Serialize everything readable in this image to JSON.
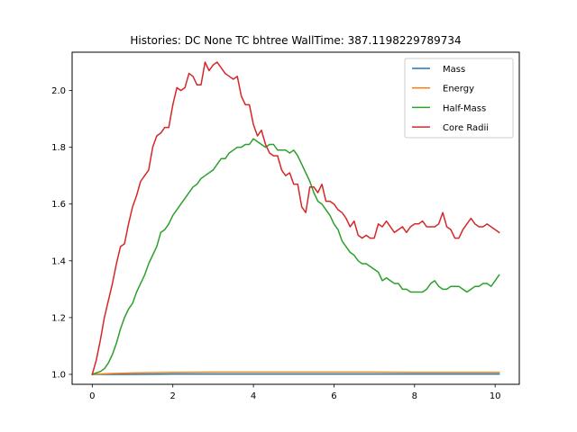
{
  "chart_data": {
    "type": "line",
    "title": "Histories: DC None TC bhtree WallTime: 387.1198229789734",
    "xlabel": "",
    "ylabel": "",
    "xlim": [
      -0.5,
      10.6
    ],
    "ylim": [
      0.965,
      2.135
    ],
    "xticks": [
      0,
      2,
      4,
      6,
      8,
      10
    ],
    "yticks": [
      1.0,
      1.2,
      1.4,
      1.6,
      1.8,
      2.0
    ],
    "xtick_labels": [
      "0",
      "2",
      "4",
      "6",
      "8",
      "10"
    ],
    "ytick_labels": [
      "1.0",
      "1.2",
      "1.4",
      "1.6",
      "1.8",
      "2.0"
    ],
    "grid": false,
    "legend_position": "top-right",
    "series": [
      {
        "name": "Mass",
        "color": "#1f77b4",
        "x": [
          0,
          0.5,
          1,
          2,
          3,
          4,
          5,
          6,
          7,
          8,
          9,
          10,
          10.1
        ],
        "y": [
          1.0,
          1.0,
          1.0,
          1.001,
          1.001,
          1.001,
          1.001,
          1.001,
          1.001,
          1.001,
          1.001,
          1.001,
          1.001
        ]
      },
      {
        "name": "Energy",
        "color": "#ff7f0e",
        "x": [
          0,
          0.5,
          1,
          2,
          3,
          4,
          5,
          6,
          7,
          8,
          9,
          10,
          10.1
        ],
        "y": [
          1.0,
          1.003,
          1.005,
          1.007,
          1.008,
          1.008,
          1.008,
          1.008,
          1.008,
          1.007,
          1.007,
          1.007,
          1.007
        ]
      },
      {
        "name": "Half-Mass",
        "color": "#2ca02c",
        "x": [
          0,
          0.1,
          0.2,
          0.3,
          0.4,
          0.5,
          0.6,
          0.7,
          0.8,
          0.9,
          1.0,
          1.1,
          1.2,
          1.3,
          1.4,
          1.5,
          1.6,
          1.7,
          1.8,
          1.9,
          2.0,
          2.1,
          2.2,
          2.3,
          2.4,
          2.5,
          2.6,
          2.7,
          2.8,
          2.9,
          3.0,
          3.1,
          3.2,
          3.3,
          3.4,
          3.5,
          3.6,
          3.7,
          3.8,
          3.9,
          4.0,
          4.1,
          4.2,
          4.3,
          4.4,
          4.5,
          4.6,
          4.7,
          4.8,
          4.9,
          5.0,
          5.1,
          5.2,
          5.3,
          5.4,
          5.5,
          5.6,
          5.7,
          5.8,
          5.9,
          6.0,
          6.1,
          6.2,
          6.3,
          6.4,
          6.5,
          6.6,
          6.7,
          6.8,
          6.9,
          7.0,
          7.1,
          7.2,
          7.3,
          7.4,
          7.5,
          7.6,
          7.7,
          7.8,
          7.9,
          8.0,
          8.1,
          8.2,
          8.3,
          8.4,
          8.5,
          8.6,
          8.7,
          8.8,
          8.9,
          9.0,
          9.1,
          9.2,
          9.3,
          9.4,
          9.5,
          9.6,
          9.7,
          9.8,
          9.9,
          10.0,
          10.1
        ],
        "y": [
          1.0,
          1.005,
          1.01,
          1.02,
          1.04,
          1.07,
          1.11,
          1.16,
          1.2,
          1.23,
          1.25,
          1.29,
          1.32,
          1.35,
          1.39,
          1.42,
          1.45,
          1.5,
          1.51,
          1.53,
          1.56,
          1.58,
          1.6,
          1.62,
          1.64,
          1.66,
          1.67,
          1.69,
          1.7,
          1.71,
          1.72,
          1.74,
          1.76,
          1.76,
          1.78,
          1.79,
          1.8,
          1.8,
          1.81,
          1.81,
          1.83,
          1.82,
          1.81,
          1.8,
          1.81,
          1.81,
          1.79,
          1.79,
          1.79,
          1.78,
          1.79,
          1.77,
          1.74,
          1.71,
          1.68,
          1.64,
          1.61,
          1.6,
          1.58,
          1.56,
          1.53,
          1.51,
          1.47,
          1.45,
          1.43,
          1.42,
          1.4,
          1.39,
          1.39,
          1.38,
          1.37,
          1.36,
          1.33,
          1.34,
          1.33,
          1.32,
          1.32,
          1.3,
          1.3,
          1.29,
          1.29,
          1.29,
          1.29,
          1.3,
          1.32,
          1.33,
          1.31,
          1.3,
          1.3,
          1.31,
          1.31,
          1.31,
          1.3,
          1.29,
          1.3,
          1.31,
          1.31,
          1.32,
          1.32,
          1.31,
          1.33,
          1.35
        ]
      },
      {
        "name": "Core Radii",
        "color": "#d62728",
        "x": [
          0,
          0.1,
          0.2,
          0.3,
          0.4,
          0.5,
          0.6,
          0.7,
          0.8,
          0.9,
          1.0,
          1.1,
          1.2,
          1.3,
          1.4,
          1.5,
          1.6,
          1.7,
          1.8,
          1.9,
          2.0,
          2.1,
          2.2,
          2.3,
          2.4,
          2.5,
          2.6,
          2.7,
          2.8,
          2.9,
          3.0,
          3.1,
          3.2,
          3.3,
          3.4,
          3.5,
          3.6,
          3.7,
          3.8,
          3.9,
          4.0,
          4.1,
          4.2,
          4.3,
          4.4,
          4.5,
          4.6,
          4.7,
          4.8,
          4.9,
          5.0,
          5.1,
          5.2,
          5.3,
          5.4,
          5.5,
          5.6,
          5.7,
          5.8,
          5.9,
          6.0,
          6.1,
          6.2,
          6.3,
          6.4,
          6.5,
          6.6,
          6.7,
          6.8,
          6.9,
          7.0,
          7.1,
          7.2,
          7.3,
          7.4,
          7.5,
          7.6,
          7.7,
          7.8,
          7.9,
          8.0,
          8.1,
          8.2,
          8.3,
          8.4,
          8.5,
          8.6,
          8.7,
          8.8,
          8.9,
          9.0,
          9.1,
          9.2,
          9.3,
          9.4,
          9.5,
          9.6,
          9.7,
          9.8,
          9.9,
          10.0,
          10.1
        ],
        "y": [
          1.0,
          1.05,
          1.12,
          1.2,
          1.26,
          1.32,
          1.39,
          1.45,
          1.46,
          1.53,
          1.59,
          1.63,
          1.68,
          1.7,
          1.72,
          1.8,
          1.84,
          1.85,
          1.87,
          1.87,
          1.95,
          2.01,
          2.0,
          2.01,
          2.06,
          2.05,
          2.02,
          2.02,
          2.1,
          2.07,
          2.09,
          2.1,
          2.08,
          2.06,
          2.05,
          2.04,
          2.05,
          1.98,
          1.95,
          1.95,
          1.88,
          1.84,
          1.86,
          1.81,
          1.78,
          1.77,
          1.77,
          1.72,
          1.7,
          1.71,
          1.67,
          1.67,
          1.59,
          1.57,
          1.66,
          1.66,
          1.64,
          1.67,
          1.61,
          1.61,
          1.6,
          1.58,
          1.57,
          1.55,
          1.52,
          1.54,
          1.49,
          1.48,
          1.49,
          1.48,
          1.48,
          1.53,
          1.52,
          1.54,
          1.52,
          1.5,
          1.51,
          1.52,
          1.5,
          1.52,
          1.53,
          1.53,
          1.54,
          1.52,
          1.52,
          1.52,
          1.53,
          1.57,
          1.52,
          1.51,
          1.48,
          1.48,
          1.51,
          1.53,
          1.55,
          1.53,
          1.52,
          1.52,
          1.53,
          1.52,
          1.51,
          1.5
        ]
      }
    ]
  }
}
